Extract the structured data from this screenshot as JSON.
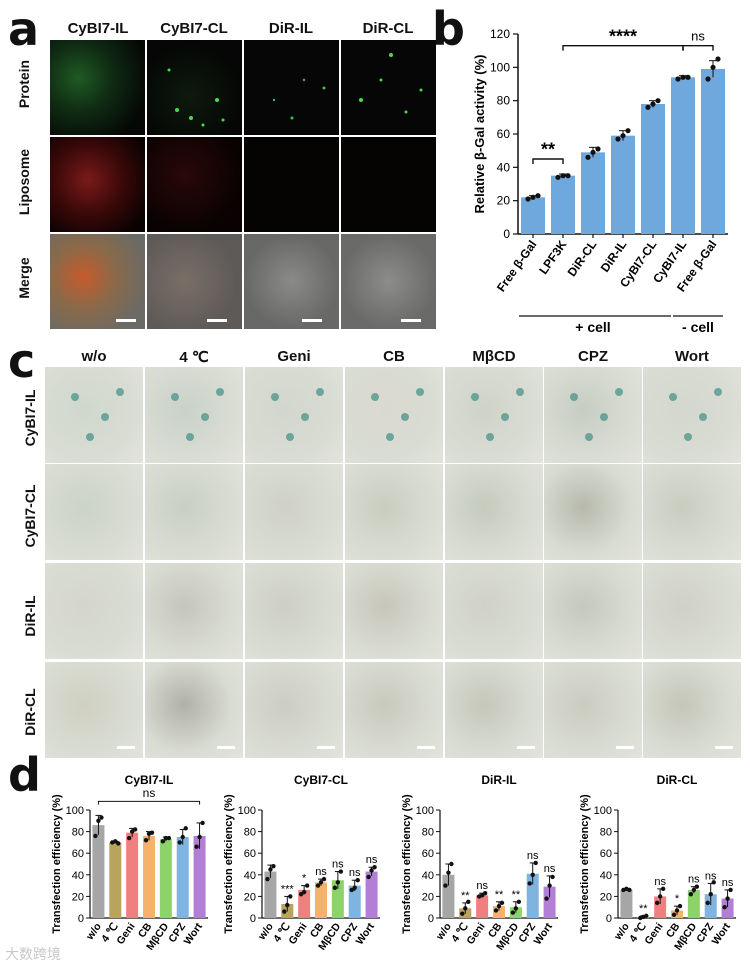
{
  "panel_labels": {
    "a": "a",
    "b": "b",
    "c": "c",
    "d": "d"
  },
  "panel_a": {
    "columns": [
      "CyBI7-IL",
      "CyBI7-CL",
      "DiR-IL",
      "DiR-CL"
    ],
    "rows": [
      "Protein",
      "Liposome",
      "Merge"
    ]
  },
  "panel_c": {
    "columns": [
      "w/o",
      "4 ℃",
      "Geni",
      "CB",
      "MβCD",
      "CPZ",
      "Wort"
    ],
    "rows": [
      "CyBI7-IL",
      "CyBI7-CL",
      "DiR-IL",
      "DiR-CL"
    ]
  },
  "watermark": "大数跨境",
  "colors": {
    "panel_b_bar": "#6fa8dc",
    "d_bars": [
      "#a6a6a6",
      "#b8a45f",
      "#f08080",
      "#f5b26b",
      "#8dd36b",
      "#7fb3e0",
      "#b37fd6"
    ]
  },
  "chart_data": [
    {
      "id": "b",
      "type": "bar",
      "categories": [
        "Free β-Gal",
        "LPF3K",
        "DiR-CL",
        "DiR-IL",
        "CyBI7-CL",
        "CyBI7-IL",
        "Free β-Gal"
      ],
      "values": [
        22,
        35,
        49,
        59,
        78,
        94,
        99
      ],
      "points": [
        [
          21,
          22,
          23
        ],
        [
          34,
          35,
          35
        ],
        [
          46,
          49,
          51
        ],
        [
          57,
          59,
          62
        ],
        [
          76,
          78,
          80
        ],
        [
          93,
          94,
          94
        ],
        [
          93,
          100,
          105
        ]
      ],
      "errors": [
        1,
        1,
        3,
        3,
        2,
        1,
        5
      ],
      "ylabel": "Relative β-Gal activity (%)",
      "ylim": [
        0,
        120
      ],
      "yticks": [
        0,
        20,
        40,
        60,
        80,
        100,
        120
      ],
      "groups": [
        {
          "label": "+ cell",
          "from": 0,
          "to": 5
        },
        {
          "label": "- cell",
          "from": 5,
          "to": 6
        }
      ],
      "significance": [
        {
          "from": 0,
          "to": 1,
          "text": "**"
        },
        {
          "from": 1,
          "to": 5,
          "text": "****"
        },
        {
          "from": 5,
          "to": 6,
          "text": "ns"
        }
      ]
    },
    {
      "id": "d1",
      "type": "bar",
      "title": "CyBI7-IL",
      "categories": [
        "w/o",
        "4 ℃",
        "Geni",
        "CB",
        "MβCD",
        "CPZ",
        "Wort"
      ],
      "values": [
        86,
        70,
        79,
        76,
        73,
        75,
        76
      ],
      "points": [
        [
          76,
          90,
          93
        ],
        [
          70,
          71,
          69
        ],
        [
          74,
          80,
          82
        ],
        [
          72,
          78,
          79
        ],
        [
          71,
          74,
          74
        ],
        [
          70,
          75,
          83
        ],
        [
          66,
          75,
          88
        ]
      ],
      "errors": [
        9,
        1,
        4,
        4,
        2,
        7,
        12
      ],
      "ylabel": "Transfection efficiency (%)",
      "ylim": [
        0,
        100
      ],
      "yticks": [
        0,
        20,
        40,
        60,
        80,
        100
      ],
      "bracket": "ns",
      "annotations": []
    },
    {
      "id": "d2",
      "type": "bar",
      "title": "CyBI7-CL",
      "categories": [
        "w/o",
        "4 ℃",
        "Geni",
        "CB",
        "MβCD",
        "CPZ",
        "Wort"
      ],
      "values": [
        43,
        13,
        26,
        33,
        35,
        30,
        43
      ],
      "points": [
        [
          36,
          45,
          48
        ],
        [
          6,
          12,
          20
        ],
        [
          22,
          24,
          30
        ],
        [
          30,
          33,
          36
        ],
        [
          28,
          33,
          43
        ],
        [
          26,
          28,
          35
        ],
        [
          38,
          44,
          47
        ]
      ],
      "errors": [
        6,
        7,
        4,
        3,
        8,
        5,
        4
      ],
      "ylabel": "Transfection efficiency (%)",
      "ylim": [
        0,
        100
      ],
      "yticks": [
        0,
        20,
        40,
        60,
        80,
        100
      ],
      "annotations": [
        "",
        "***",
        "*",
        "ns",
        "ns",
        "ns",
        "ns"
      ]
    },
    {
      "id": "d3",
      "type": "bar",
      "title": "DiR-IL",
      "categories": [
        "w/o",
        "4 ℃",
        "Geni",
        "CB",
        "MβCD",
        "CPZ",
        "Wort"
      ],
      "values": [
        40,
        9,
        21,
        11,
        10,
        41,
        29
      ],
      "points": [
        [
          30,
          42,
          50
        ],
        [
          4,
          9,
          15
        ],
        [
          20,
          21,
          23
        ],
        [
          7,
          11,
          14
        ],
        [
          5,
          9,
          15
        ],
        [
          32,
          40,
          51
        ],
        [
          18,
          30,
          38
        ]
      ],
      "errors": [
        10,
        5,
        2,
        4,
        5,
        10,
        10
      ],
      "ylabel": "Transfection efficiency (%)",
      "ylim": [
        0,
        100
      ],
      "yticks": [
        0,
        20,
        40,
        60,
        80,
        100
      ],
      "annotations": [
        "",
        "**",
        "ns",
        "**",
        "**",
        "ns",
        "ns"
      ]
    },
    {
      "id": "d4",
      "type": "bar",
      "title": "DiR-CL",
      "categories": [
        "w/o",
        "4 ℃",
        "Geni",
        "CB",
        "MβCD",
        "CPZ",
        "Wort"
      ],
      "values": [
        26,
        1,
        20,
        7,
        26,
        22,
        18
      ],
      "points": [
        [
          26,
          27,
          26
        ],
        [
          0,
          1,
          2
        ],
        [
          14,
          20,
          27
        ],
        [
          3,
          7,
          11
        ],
        [
          22,
          26,
          29
        ],
        [
          14,
          22,
          33
        ],
        [
          10,
          18,
          26
        ]
      ],
      "errors": [
        1,
        1,
        7,
        4,
        3,
        10,
        8
      ],
      "ylabel": "Transfection efficiency (%)",
      "ylim": [
        0,
        100
      ],
      "yticks": [
        0,
        20,
        40,
        60,
        80,
        100
      ],
      "annotations": [
        "",
        "**",
        "ns",
        "*",
        "ns",
        "ns",
        "ns"
      ]
    }
  ]
}
